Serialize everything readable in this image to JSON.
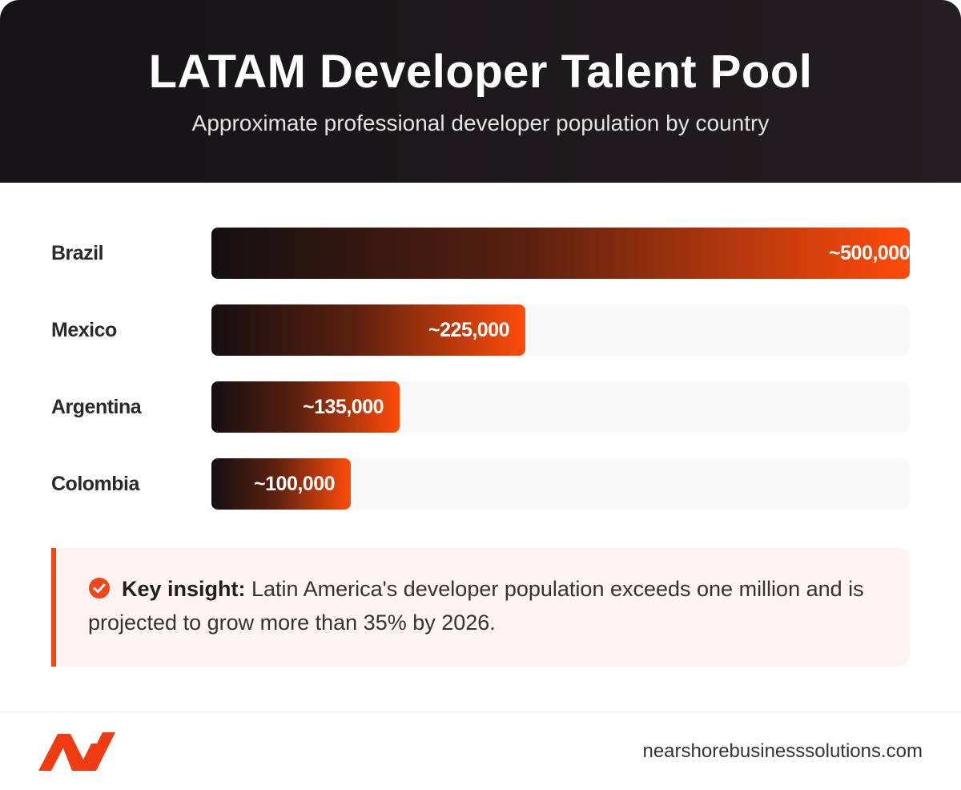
{
  "header": {
    "title": "LATAM Developer Talent Pool",
    "subtitle": "Approximate professional developer population by country"
  },
  "chart_data": {
    "type": "bar",
    "orientation": "horizontal",
    "title": "LATAM Developer Talent Pool",
    "subtitle": "Approximate professional developer population by country",
    "categories": [
      "Brazil",
      "Mexico",
      "Argentina",
      "Colombia"
    ],
    "values": [
      500000,
      225000,
      135000,
      100000
    ],
    "value_labels": [
      "~500,000",
      "~225,000",
      "~135,000",
      "~100,000"
    ],
    "xlim": [
      0,
      500000
    ],
    "grid": false,
    "legend": "none"
  },
  "insight": {
    "lead": "Key insight:",
    "text": " Latin America's developer population exceeds one million and is projected to grow more than 35% by 2026.",
    "icon": "check-circle-icon"
  },
  "footer": {
    "website": "nearshorebusinesssolutions.com",
    "logo_icon": "brand-logo-icon"
  },
  "colors": {
    "accent": "#ff4b0a",
    "header_bg": "#151316",
    "insight_bg": "#fdf3f0"
  }
}
